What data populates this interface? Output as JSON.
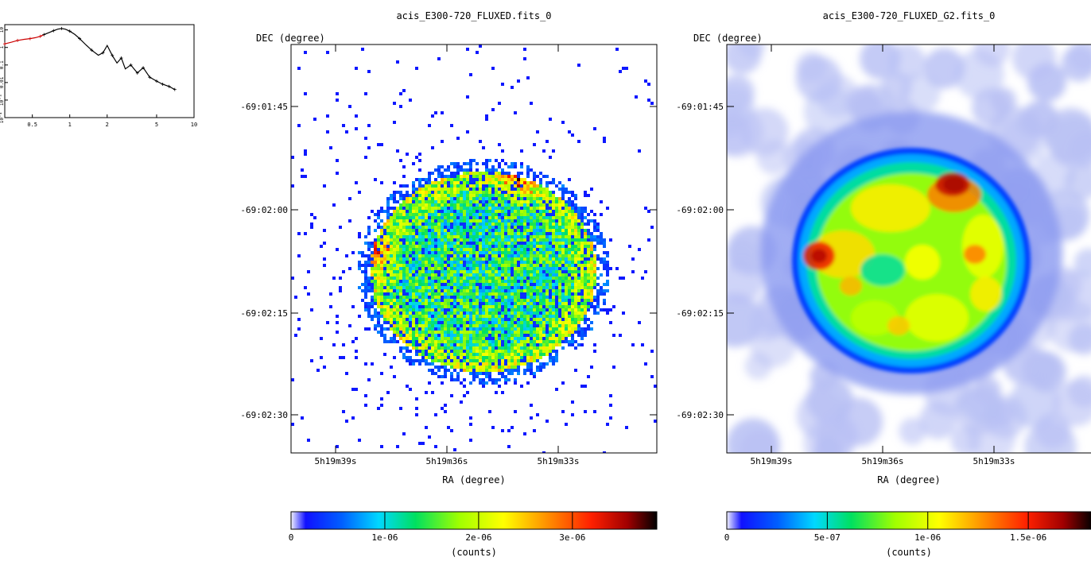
{
  "chart_data": [
    {
      "type": "line",
      "role": "inset-spectrum",
      "title": "",
      "xlabel": "",
      "ylabel": "",
      "x_scale": "log",
      "y_scale": "log",
      "xlim": [
        0.3,
        10
      ],
      "ylim": [
        0.0001,
        20
      ],
      "x_ticks": [
        "0.5",
        "1",
        "2",
        "5",
        "10"
      ],
      "y_ticks": [
        "10⁻⁴",
        "10⁻³",
        "0.01",
        "0.1",
        "1",
        "10"
      ],
      "series": [
        {
          "color": "#cc0000",
          "x": [
            0.3,
            0.34,
            0.38,
            0.43,
            0.48,
            0.53,
            0.58,
            0.62
          ],
          "y": [
            1.6,
            2.0,
            2.5,
            2.9,
            3.2,
            3.6,
            4.3,
            5.4
          ]
        },
        {
          "color": "#000000",
          "x": [
            0.62,
            0.68,
            0.74,
            0.8,
            0.86,
            0.92,
            1.0,
            1.1,
            1.2,
            1.35,
            1.5,
            1.7,
            1.85,
            2.0,
            2.2,
            2.4,
            2.6,
            2.8,
            3.1,
            3.5,
            3.9,
            4.4,
            5.0,
            5.6,
            6.3,
            7.0
          ],
          "y": [
            5.4,
            7.0,
            9.0,
            11.0,
            12.0,
            11.0,
            8.5,
            5.5,
            3.2,
            1.4,
            0.7,
            0.36,
            0.5,
            1.3,
            0.35,
            0.13,
            0.25,
            0.06,
            0.1,
            0.035,
            0.07,
            0.02,
            0.012,
            0.008,
            0.006,
            0.004
          ]
        }
      ]
    },
    {
      "type": "heatmap",
      "title": "acis_E300-720_FLUXED.fits_0",
      "xlabel": "RA (degree)",
      "ylabel": "DEC (degree)",
      "x_ticks": [
        "5h19m39s",
        "5h19m36s",
        "5h19m33s"
      ],
      "y_ticks": [
        "-69:01:45",
        "-69:02:00",
        "-69:02:15",
        "-69:02:30"
      ],
      "colorbar": {
        "label": "(counts)",
        "range": [
          0,
          3.9e-06
        ],
        "ticks": [
          "0",
          "1e-06",
          "2e-06",
          "3e-06"
        ],
        "tick_values": [
          0,
          1e-06,
          2e-06,
          3e-06
        ]
      },
      "seed": 7
    },
    {
      "type": "heatmap",
      "title": "acis_E300-720_FLUXED_G2.fits_0",
      "xlabel": "RA (degree)",
      "ylabel": "DEC (degree)",
      "x_ticks": [
        "5h19m39s",
        "5h19m36s",
        "5h19m33s"
      ],
      "y_ticks": [
        "-69:01:45",
        "-69:02:00",
        "-69:02:15",
        "-69:02:30"
      ],
      "colorbar": {
        "label": "(counts)",
        "range": [
          0,
          1.82e-06
        ],
        "ticks": [
          "0",
          "5e-07",
          "1e-06",
          "1.5e-06"
        ],
        "tick_values": [
          0,
          5e-07,
          1e-06,
          1.5e-06
        ]
      },
      "seed": 11
    }
  ]
}
